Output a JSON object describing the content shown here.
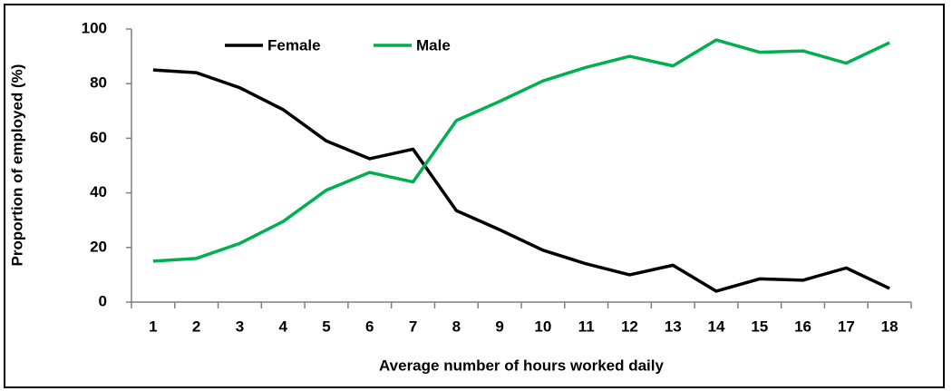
{
  "chart_data": {
    "type": "line",
    "x_label": "Average number of hours worked daily",
    "y_label": "Proportion of employed (%)",
    "categories": [
      "1",
      "2",
      "3",
      "4",
      "5",
      "6",
      "7",
      "8",
      "9",
      "10",
      "11",
      "12",
      "13",
      "14",
      "15",
      "16",
      "17",
      "18"
    ],
    "series": [
      {
        "name": "Female",
        "color": "#000000",
        "values": [
          85,
          84,
          78.5,
          70.5,
          59,
          52.5,
          56,
          33.5,
          26.5,
          19,
          14,
          10,
          13.5,
          4,
          8.5,
          8,
          12.5,
          5
        ]
      },
      {
        "name": "Male",
        "color": "#00b050",
        "values": [
          15,
          16,
          21.5,
          29.5,
          41,
          47.5,
          44,
          66.5,
          73.5,
          81,
          86,
          90,
          86.5,
          96,
          91.5,
          92,
          87.5,
          95
        ]
      }
    ],
    "ylim": [
      0,
      100
    ],
    "yticks": [
      0,
      20,
      40,
      60,
      80,
      100
    ],
    "grid": false,
    "legend": "top"
  }
}
